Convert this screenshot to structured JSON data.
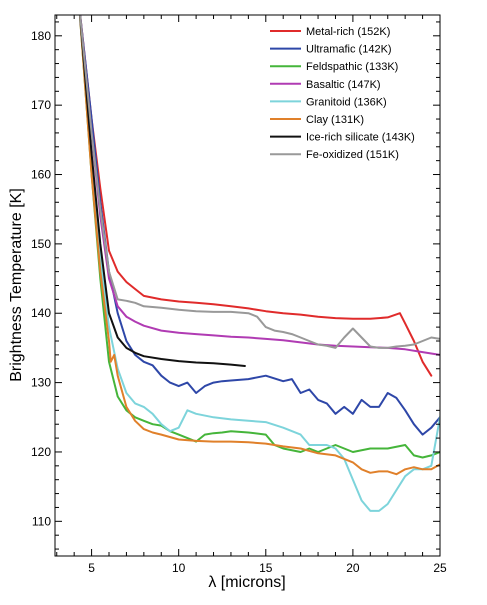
{
  "chart_data": {
    "type": "line",
    "title": "",
    "xlabel": "λ  [microns]",
    "ylabel": "Brightness Temperature [K]",
    "xlim": [
      2.9,
      25
    ],
    "ylim": [
      105,
      183
    ],
    "xticks": [
      5,
      10,
      15,
      20,
      25
    ],
    "yticks": [
      110,
      120,
      130,
      140,
      150,
      160,
      170,
      180
    ],
    "legend_position": "top-right",
    "grid": false,
    "series": [
      {
        "name": "Metal-rich (152K)",
        "color": "#e02b2b",
        "x": [
          4.3,
          5.0,
          5.5,
          6.0,
          6.5,
          7.0,
          7.5,
          8.0,
          9.0,
          10.0,
          11.0,
          12.0,
          13.0,
          14.0,
          15.0,
          16.0,
          17.0,
          18.0,
          19.0,
          20.0,
          21.0,
          22.0,
          22.7,
          23.0,
          23.5,
          24.0,
          24.5
        ],
        "y": [
          184,
          168,
          158,
          149,
          146,
          144.5,
          143.5,
          142.5,
          142,
          141.7,
          141.5,
          141.3,
          141,
          140.7,
          140.3,
          140,
          139.8,
          139.5,
          139.3,
          139.2,
          139.2,
          139.4,
          140,
          138.5,
          136,
          133,
          131
        ]
      },
      {
        "name": "Ultramafic (142K)",
        "color": "#2e47a8",
        "x": [
          4.3,
          5.0,
          5.5,
          6.0,
          6.5,
          7.0,
          7.5,
          8.0,
          8.5,
          9.0,
          9.5,
          10.0,
          10.5,
          11.0,
          11.5,
          12.0,
          12.5,
          13.0,
          14.0,
          15.0,
          16.0,
          16.5,
          17.0,
          17.5,
          18.0,
          18.5,
          19.0,
          19.5,
          20.0,
          20.5,
          21.0,
          21.5,
          22.0,
          22.5,
          23.0,
          23.5,
          24.0,
          24.5,
          25.0
        ],
        "y": [
          184,
          168,
          156,
          146,
          140,
          136,
          134,
          133,
          132.5,
          131,
          130,
          129.5,
          130,
          128.5,
          129.5,
          130,
          130.2,
          130.3,
          130.5,
          131,
          130.2,
          130.5,
          128.5,
          129,
          127.5,
          127,
          125.5,
          126.5,
          125.5,
          127.5,
          126.5,
          126.5,
          128.5,
          127.8,
          126,
          124,
          122.5,
          123.5,
          125
        ]
      },
      {
        "name": "Feldspathic (133K)",
        "color": "#45b53a",
        "x": [
          4.3,
          5.0,
          5.5,
          6.0,
          6.5,
          7.0,
          7.5,
          8.0,
          8.5,
          9.0,
          9.5,
          10.0,
          10.5,
          11.0,
          11.5,
          12.0,
          12.5,
          13.0,
          14.0,
          15.0,
          15.5,
          16.0,
          17.0,
          17.5,
          18.0,
          19.0,
          20.0,
          21.0,
          22.0,
          23.0,
          23.5,
          24.0,
          24.5,
          25.0
        ],
        "y": [
          184,
          160,
          145,
          133,
          128,
          126,
          125,
          124.5,
          124,
          123.8,
          123,
          122.5,
          122,
          121.5,
          122.5,
          122.7,
          122.8,
          123,
          122.8,
          122.5,
          121,
          120.5,
          120,
          120.5,
          120,
          121,
          120,
          120.5,
          120.5,
          121,
          119.5,
          119.2,
          119.5,
          120
        ]
      },
      {
        "name": "Basaltic (147K)",
        "color": "#b03bb3",
        "x": [
          4.3,
          5.0,
          5.5,
          6.0,
          6.5,
          7.0,
          7.5,
          8.0,
          9.0,
          10.0,
          11.0,
          12.0,
          13.0,
          14.0,
          15.0,
          16.0,
          17.0,
          18.0,
          19.0,
          20.0,
          21.0,
          22.0,
          23.0,
          24.0,
          25.0
        ],
        "y": [
          184,
          166,
          154,
          145,
          141,
          139.5,
          138.8,
          138.2,
          137.5,
          137.2,
          137,
          136.8,
          136.6,
          136.5,
          136.3,
          136.1,
          135.8,
          135.5,
          135.3,
          135.2,
          135.1,
          135,
          134.8,
          134.4,
          134
        ]
      },
      {
        "name": "Granitoid (136K)",
        "color": "#7dd4db",
        "x": [
          4.3,
          5.0,
          5.5,
          6.0,
          6.5,
          7.0,
          7.5,
          8.0,
          8.5,
          9.0,
          9.5,
          10.0,
          10.5,
          11.0,
          12.0,
          13.0,
          14.0,
          15.0,
          16.0,
          17.0,
          17.5,
          18.0,
          18.5,
          19.0,
          19.5,
          20.0,
          20.5,
          21.0,
          21.5,
          22.0,
          22.5,
          23.0,
          23.5,
          24.0,
          24.5,
          25.0
        ],
        "y": [
          184,
          162,
          148,
          138,
          132,
          128.5,
          127,
          126.5,
          125.5,
          124,
          123,
          123.5,
          126,
          125.5,
          125,
          124.7,
          124.5,
          124.3,
          123.5,
          122.5,
          121,
          121,
          121,
          120.5,
          119,
          116,
          113,
          111.5,
          111.5,
          112.5,
          114.5,
          116.5,
          117.5,
          117.5,
          118,
          125
        ]
      },
      {
        "name": "Clay (131K)",
        "color": "#e0802a",
        "x": [
          4.3,
          5.0,
          5.5,
          6.0,
          6.1,
          6.3,
          6.5,
          7.0,
          7.5,
          8.0,
          8.5,
          9.0,
          10.0,
          11.0,
          12.0,
          13.0,
          14.0,
          15.0,
          16.0,
          17.0,
          18.0,
          19.0,
          20.0,
          20.5,
          21.0,
          21.5,
          22.0,
          22.5,
          23.0,
          23.5,
          24.0,
          24.5,
          25.0
        ],
        "y": [
          184,
          160,
          146,
          136,
          133,
          134,
          131,
          126.5,
          124.5,
          123.3,
          122.8,
          122.5,
          121.8,
          121.6,
          121.5,
          121.5,
          121.4,
          121.2,
          120.8,
          120.5,
          119.8,
          119.5,
          118.5,
          117.5,
          117,
          117.2,
          117.2,
          116.8,
          117.5,
          117.8,
          117.5,
          117.5,
          118.2
        ]
      },
      {
        "name": "Ice-rich silicate (143K)",
        "color": "#111111",
        "x": [
          4.3,
          5.0,
          5.5,
          6.0,
          6.5,
          7.0,
          7.5,
          8.0,
          9.0,
          10.0,
          11.0,
          12.0,
          13.0,
          13.8
        ],
        "y": [
          184,
          163,
          150,
          140,
          136.5,
          135,
          134.3,
          133.8,
          133.4,
          133.1,
          132.9,
          132.8,
          132.6,
          132.4
        ]
      },
      {
        "name": "Fe-oxidized (151K)",
        "color": "#999999",
        "x": [
          4.3,
          5.0,
          5.5,
          6.0,
          6.5,
          7.0,
          7.5,
          8.0,
          9.0,
          10.0,
          11.0,
          12.0,
          13.0,
          14.0,
          14.5,
          15.0,
          15.5,
          16.0,
          16.5,
          17.0,
          17.5,
          18.0,
          18.5,
          19.0,
          19.5,
          20.0,
          20.5,
          21.0,
          21.5,
          22.0,
          22.5,
          23.0,
          23.5,
          24.0,
          24.5,
          25.0
        ],
        "y": [
          184,
          166,
          155,
          146,
          142,
          141.8,
          141.5,
          141,
          140.8,
          140.5,
          140.3,
          140.2,
          140.2,
          140,
          139.5,
          138,
          137.5,
          137.3,
          137,
          136.5,
          136,
          135.5,
          135.3,
          135,
          136.5,
          137.8,
          136.5,
          135.2,
          135,
          135,
          135.2,
          135.3,
          135.5,
          136,
          136.5,
          136.3
        ]
      }
    ]
  }
}
